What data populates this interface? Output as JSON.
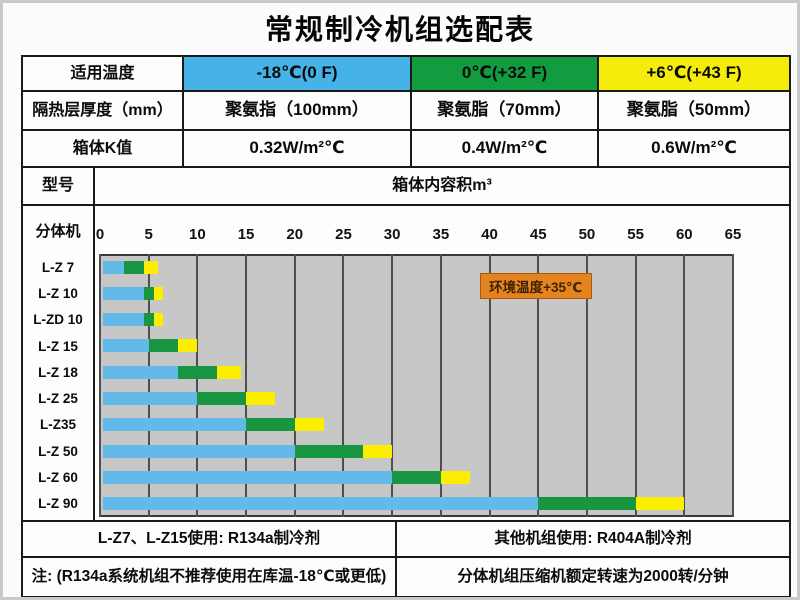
{
  "title": "常规制冷机组选配表",
  "colors": {
    "temp_blue": "#45b3e8",
    "temp_green": "#129c3f",
    "temp_yellow": "#f6ec0c",
    "bar_blue": "#63bae9",
    "bar_green": "#189540",
    "bar_yellow": "#fbee00",
    "plot_background": "#c7c7c7",
    "gridline": "#4f4f4f",
    "annotation_background": "#e5831f",
    "border": "#1a1a1a"
  },
  "spec": {
    "rows": [
      {
        "label": "适用温度",
        "cells": [
          "-18℃(0 F)",
          "0℃(+32 F)",
          "+6℃(+43 F)"
        ]
      },
      {
        "label": "隔热层厚度（mm）",
        "cells": [
          "聚氨指（100mm）",
          "聚氨脂（70mm）",
          "聚氨脂（50mm）"
        ]
      },
      {
        "label": "箱体K值",
        "cells": [
          "0.32W/m²℃",
          "0.4W/m²℃",
          "0.6W/m²℃"
        ]
      }
    ]
  },
  "model_row": {
    "label": "型号",
    "value": "箱体内容积m³"
  },
  "chart_data": {
    "type": "bar",
    "orientation": "horizontal-stacked-range",
    "group_label": "分体机",
    "xlabel": "箱体内容积m³",
    "xlim": [
      0,
      65
    ],
    "x_ticks": [
      0,
      5,
      10,
      15,
      20,
      25,
      30,
      35,
      40,
      45,
      50,
      55,
      60,
      65
    ],
    "grid": true,
    "series_legend": [
      {
        "name": "-18℃(0 F)",
        "color": "#63bae9"
      },
      {
        "name": "0℃(+32 F)",
        "color": "#189540"
      },
      {
        "name": "+6℃(+43 F)",
        "color": "#fbee00"
      }
    ],
    "annotation": {
      "text": "环境温度+35℃",
      "x_from": 39,
      "x_to": 50.5
    },
    "models": [
      {
        "name": "L-Z 7",
        "segments": [
          2.5,
          4.5,
          6
        ]
      },
      {
        "name": "L-Z 10",
        "segments": [
          4.5,
          5.5,
          6.5
        ]
      },
      {
        "name": "L-ZD 10",
        "segments": [
          4.5,
          5.5,
          6.5
        ]
      },
      {
        "name": "L-Z 15",
        "segments": [
          5,
          8,
          10
        ]
      },
      {
        "name": "L-Z 18",
        "segments": [
          8,
          12,
          14.5
        ]
      },
      {
        "name": "L-Z 25",
        "segments": [
          10,
          15,
          18
        ]
      },
      {
        "name": "L-Z35",
        "segments": [
          15,
          20,
          23
        ]
      },
      {
        "name": "L-Z 50",
        "segments": [
          20,
          27,
          30
        ]
      },
      {
        "name": "L-Z 60",
        "segments": [
          30,
          35,
          38
        ]
      },
      {
        "name": "L-Z 90",
        "segments": [
          45,
          55,
          60
        ]
      }
    ]
  },
  "footer": {
    "rows": [
      {
        "left": "L-Z7、L-Z15使用: R134a制冷剂",
        "right": "其他机组使用: R404A制冷剂"
      },
      {
        "left": "注: (R134a系统机组不推荐使用在库温-18℃或更低)",
        "right": "分体机组压缩机额定转速为2000转/分钟"
      }
    ]
  }
}
